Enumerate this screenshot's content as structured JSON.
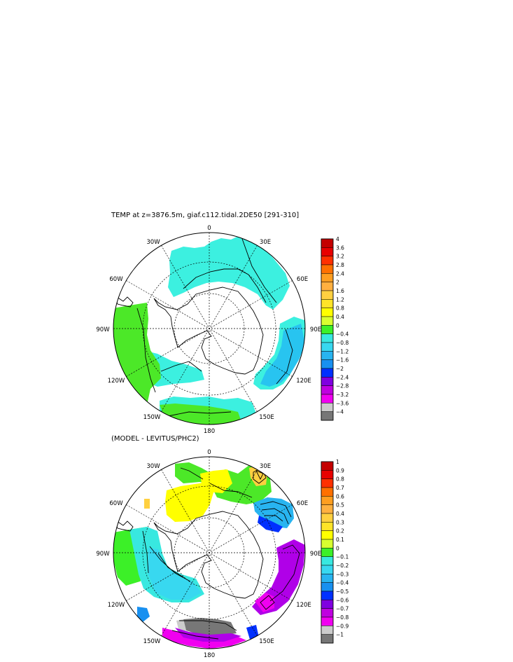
{
  "chart_data": [
    {
      "type": "heatmap",
      "projection": "south-polar-stereographic",
      "title": "TEMP at z=3876.5m, giaf.c112.tidal.2DE50 [291-310]",
      "longitude_labels": [
        "0",
        "30E",
        "60E",
        "90E",
        "120E",
        "150E",
        "180",
        "150W",
        "120W",
        "90W",
        "60W",
        "30W"
      ],
      "colorbar_ticks": [
        "4",
        "3.6",
        "3.2",
        "2.8",
        "2.4",
        "2",
        "1.6",
        "1.2",
        "0.8",
        "0.4",
        "0",
        "-0.4",
        "-0.8",
        "-1.2",
        "-1.6",
        "-2",
        "-2.4",
        "-2.8",
        "-3.2",
        "-3.6",
        "-4"
      ],
      "colorbar_colors": [
        "#c40000",
        "#e80000",
        "#ff3000",
        "#ff7000",
        "#ff9e20",
        "#ffb040",
        "#ffd040",
        "#ffe428",
        "#ffff00",
        "#d8ff30",
        "#3cf028",
        "#38e8e0",
        "#38d8f0",
        "#28b4f0",
        "#1890f0",
        "#0030ff",
        "#8000e0",
        "#c000e0",
        "#f000f0",
        "#cccccc",
        "#777777"
      ],
      "regions": [
        {
          "sector": "0 to 45E",
          "value_range": [
            -0.4,
            0
          ]
        },
        {
          "sector": "80E to 95E",
          "value_range": [
            -1.2,
            -0.8
          ]
        },
        {
          "sector": "105E to 130E",
          "value_range": [
            -1.2,
            -0.8
          ]
        },
        {
          "sector": "140E to 160W",
          "value_range": [
            -0.4,
            0
          ]
        },
        {
          "sector": "75W to 110W",
          "value_range": [
            0,
            0.4
          ]
        },
        {
          "sector": "110W to 150W",
          "value_range": [
            -0.4,
            0
          ]
        }
      ]
    },
    {
      "type": "heatmap",
      "projection": "south-polar-stereographic",
      "title": "(MODEL - LEVITUS/PHC2)",
      "longitude_labels": [
        "0",
        "30E",
        "60E",
        "90E",
        "120E",
        "150E",
        "180",
        "150W",
        "120W",
        "90W",
        "60W",
        "30W"
      ],
      "colorbar_ticks": [
        "1",
        "0.9",
        "0.8",
        "0.7",
        "0.6",
        "0.5",
        "0.4",
        "0.3",
        "0.2",
        "0.1",
        "0",
        "-0.1",
        "-0.2",
        "-0.3",
        "-0.4",
        "-0.5",
        "-0.6",
        "-0.7",
        "-0.8",
        "-0.9",
        "-1"
      ],
      "colorbar_colors": [
        "#c40000",
        "#e80000",
        "#ff3000",
        "#ff7000",
        "#ff9e20",
        "#ffb040",
        "#ffd040",
        "#ffe428",
        "#ffff00",
        "#d8ff30",
        "#3cf028",
        "#38e8e0",
        "#38d8f0",
        "#28b4f0",
        "#1890f0",
        "#0030ff",
        "#8000e0",
        "#c000e0",
        "#f000f0",
        "#cccccc",
        "#777777"
      ],
      "regions": [
        {
          "sector": "30W to 20E",
          "value_range": [
            0.2,
            0.3
          ]
        },
        {
          "sector": "20E to 45E",
          "value_range": [
            0.1,
            0.4
          ]
        },
        {
          "sector": "45E to 70E",
          "value_range": [
            -0.5,
            -0.1
          ]
        },
        {
          "sector": "85E to 135E",
          "value_range": [
            -0.7,
            -0.6
          ]
        },
        {
          "sector": "160E to 170W",
          "value_range": [
            -1,
            -0.8
          ]
        },
        {
          "sector": "75W to 100W",
          "value_range": [
            0,
            0.1
          ]
        },
        {
          "sector": "100W to 140W",
          "value_range": [
            -0.2,
            -0.1
          ]
        }
      ]
    }
  ]
}
